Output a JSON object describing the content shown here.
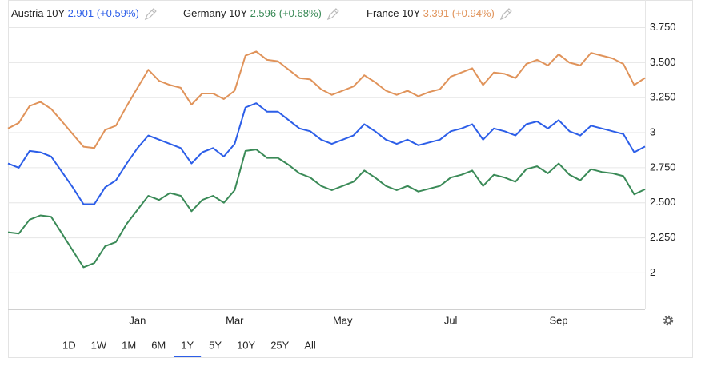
{
  "chart_data": {
    "type": "line",
    "categories": [
      null,
      null,
      null,
      null,
      null,
      null,
      null,
      null,
      null,
      null,
      null,
      null,
      "Jan",
      null,
      null,
      null,
      null,
      null,
      null,
      null,
      null,
      "Mar",
      null,
      null,
      null,
      null,
      null,
      null,
      null,
      null,
      null,
      "May",
      null,
      null,
      null,
      null,
      null,
      null,
      null,
      null,
      null,
      "Jul",
      null,
      null,
      null,
      null,
      null,
      null,
      null,
      null,
      null,
      "Sep",
      null,
      null,
      null,
      null,
      null,
      null,
      null,
      null
    ],
    "series": [
      {
        "name": "Austria 10Y",
        "legend_value": "2.901",
        "legend_change": "(+0.59%)",
        "color": "#2c5ee8",
        "values": [
          2.78,
          2.75,
          2.87,
          2.86,
          2.83,
          2.72,
          2.61,
          2.49,
          2.49,
          2.61,
          2.66,
          2.78,
          2.89,
          2.98,
          2.95,
          2.92,
          2.89,
          2.78,
          2.86,
          2.89,
          2.83,
          2.92,
          3.18,
          3.21,
          3.15,
          3.15,
          3.09,
          3.03,
          3.01,
          2.95,
          2.92,
          2.95,
          2.98,
          3.06,
          3.01,
          2.95,
          2.92,
          2.95,
          2.91,
          2.93,
          2.95,
          3.01,
          3.03,
          3.06,
          2.95,
          3.03,
          3.01,
          2.98,
          3.06,
          3.08,
          3.03,
          3.09,
          3.01,
          2.98,
          3.05,
          3.03,
          3.01,
          2.99,
          2.86,
          2.901
        ]
      },
      {
        "name": "Germany 10Y",
        "legend_value": "2.596",
        "legend_change": "(+0.68%)",
        "color": "#3a8a57",
        "values": [
          2.29,
          2.28,
          2.38,
          2.41,
          2.4,
          2.28,
          2.16,
          2.04,
          2.07,
          2.19,
          2.22,
          2.35,
          2.45,
          2.55,
          2.52,
          2.57,
          2.55,
          2.44,
          2.52,
          2.55,
          2.5,
          2.59,
          2.87,
          2.88,
          2.82,
          2.82,
          2.77,
          2.71,
          2.68,
          2.62,
          2.59,
          2.62,
          2.65,
          2.73,
          2.68,
          2.62,
          2.59,
          2.62,
          2.58,
          2.6,
          2.62,
          2.68,
          2.7,
          2.73,
          2.62,
          2.7,
          2.68,
          2.65,
          2.74,
          2.76,
          2.71,
          2.78,
          2.7,
          2.66,
          2.74,
          2.72,
          2.71,
          2.69,
          2.56,
          2.596
        ]
      },
      {
        "name": "France 10Y",
        "legend_value": "3.391",
        "legend_change": "(+0.94%)",
        "color": "#e0935a",
        "values": [
          3.03,
          3.07,
          3.19,
          3.22,
          3.17,
          3.08,
          2.99,
          2.9,
          2.89,
          3.02,
          3.05,
          3.19,
          3.32,
          3.45,
          3.37,
          3.34,
          3.32,
          3.2,
          3.28,
          3.28,
          3.24,
          3.3,
          3.55,
          3.58,
          3.52,
          3.51,
          3.45,
          3.39,
          3.38,
          3.31,
          3.27,
          3.3,
          3.33,
          3.41,
          3.36,
          3.3,
          3.27,
          3.3,
          3.26,
          3.29,
          3.31,
          3.4,
          3.43,
          3.46,
          3.34,
          3.43,
          3.42,
          3.39,
          3.49,
          3.52,
          3.48,
          3.56,
          3.5,
          3.48,
          3.57,
          3.55,
          3.53,
          3.49,
          3.34,
          3.391
        ]
      }
    ],
    "ylim": [
      1.74,
      3.89
    ],
    "yticks": [
      {
        "value": 3.75,
        "label": "3.750"
      },
      {
        "value": 3.5,
        "label": "3.500"
      },
      {
        "value": 3.25,
        "label": "3.250"
      },
      3,
      {
        "value": 2.75,
        "label": "2.750"
      },
      {
        "value": 2.5,
        "label": "2.500"
      },
      {
        "value": 2.25,
        "label": "2.250"
      },
      2
    ],
    "grid": true,
    "range_buttons": [
      "1D",
      "1W",
      "1M",
      "6M",
      "1Y",
      "5Y",
      "10Y",
      "25Y",
      "All"
    ],
    "selected_range": "1Y"
  }
}
